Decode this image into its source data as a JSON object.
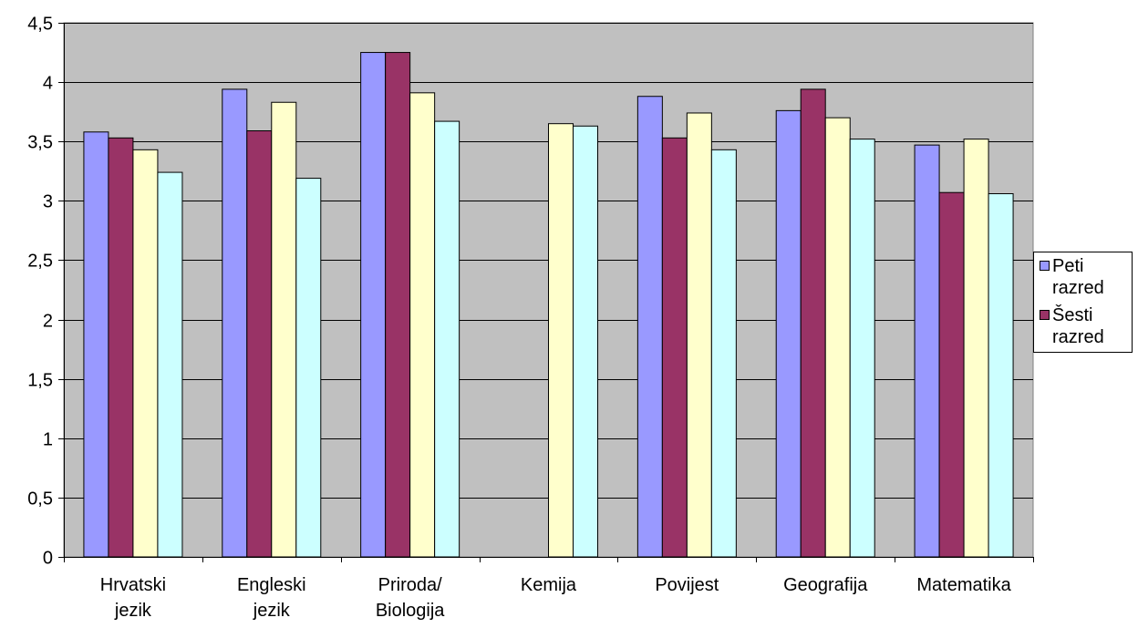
{
  "chart_data": {
    "type": "bar",
    "title": "",
    "xlabel": "",
    "ylabel": "",
    "ylim": [
      0,
      4.5
    ],
    "yticks": [
      "0",
      "0,5",
      "1",
      "1,5",
      "2",
      "2,5",
      "3",
      "3,5",
      "4",
      "4,5"
    ],
    "grid": true,
    "plot_background": "#C0C0C0",
    "legend_position": "right",
    "categories": [
      [
        "Hrvatski",
        "jezik"
      ],
      [
        "Engleski",
        "jezik"
      ],
      [
        "Priroda/",
        "Biologija"
      ],
      [
        "Kemija"
      ],
      [
        "Povijest"
      ],
      [
        "Geografija"
      ],
      [
        "Matematika"
      ]
    ],
    "series": [
      {
        "name": "Peti razred",
        "legend_lines": [
          "Peti",
          "razred"
        ],
        "color": "#9999FF",
        "values": [
          3.58,
          3.94,
          4.25,
          null,
          3.88,
          3.76,
          3.47
        ]
      },
      {
        "name": "Šesti razred",
        "legend_lines": [
          "Šesti",
          "razred"
        ],
        "color": "#993366",
        "values": [
          3.53,
          3.59,
          4.25,
          null,
          3.53,
          3.94,
          3.07
        ]
      },
      {
        "color": "#FFFFCC",
        "values": [
          3.43,
          3.83,
          3.91,
          3.65,
          3.74,
          3.7,
          3.52
        ]
      },
      {
        "color": "#CCFFFF",
        "values": [
          3.24,
          3.19,
          3.67,
          3.63,
          3.43,
          3.52,
          3.06
        ]
      }
    ]
  }
}
